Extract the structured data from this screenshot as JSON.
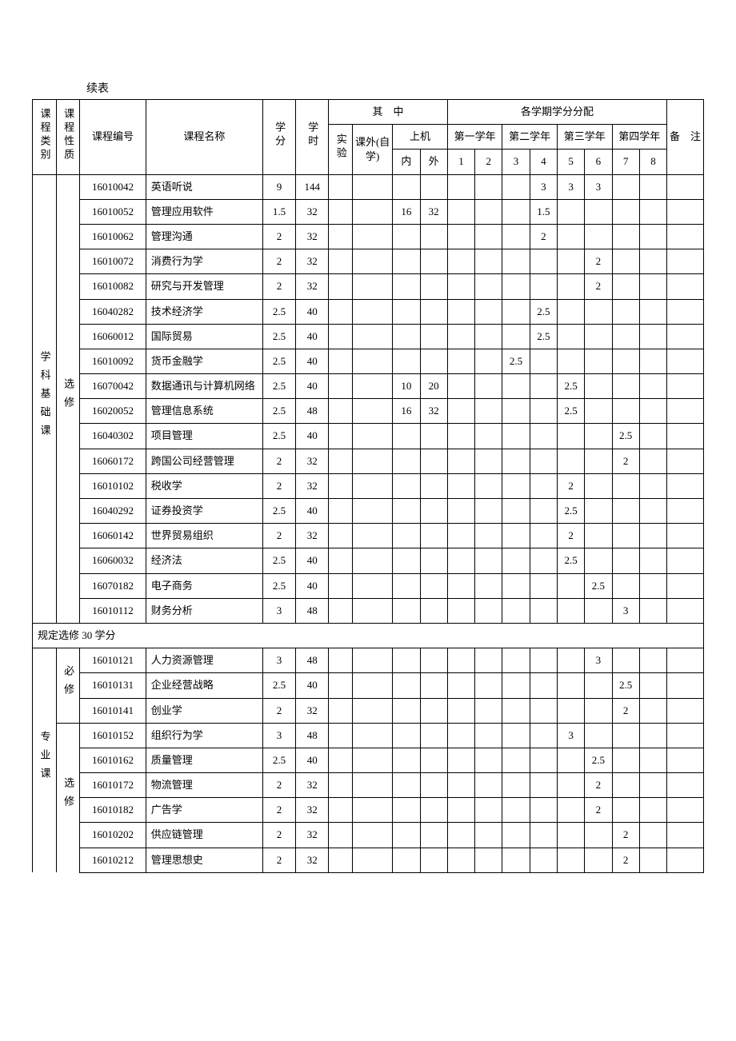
{
  "caption": "续表",
  "header": {
    "category": "课程类别",
    "nature": "课程性质",
    "code": "课程编号",
    "name": "课程名称",
    "credit": "学分",
    "hours": "学时",
    "of_which": "其　中",
    "experiment": "实验",
    "self_study": "课外(自学)",
    "machine": "上机",
    "machine_in": "内",
    "machine_out": "外",
    "dist": "各学期学分分配",
    "year1": "第一学年",
    "year2": "第二学年",
    "year3": "第三学年",
    "year4": "第四学年",
    "s1": "1",
    "s2": "2",
    "s3": "3",
    "s4": "4",
    "s5": "5",
    "s6": "6",
    "s7": "7",
    "s8": "8",
    "remark": "备　注"
  },
  "catA": "学科基础课",
  "natA": "选修",
  "catB": "专业课",
  "natB1": "必修",
  "natB2": "选修",
  "note_row": "规定选修 30 学分",
  "rowsA": [
    {
      "code": "16010042",
      "name": "英语听说",
      "credit": "9",
      "hours": "144",
      "exp": "",
      "self": "",
      "in": "",
      "out": "",
      "s": [
        "",
        "",
        "",
        "3",
        "3",
        "3",
        "",
        ""
      ]
    },
    {
      "code": "16010052",
      "name": "管理应用软件",
      "credit": "1.5",
      "hours": "32",
      "exp": "",
      "self": "",
      "in": "16",
      "out": "32",
      "s": [
        "",
        "",
        "",
        "1.5",
        "",
        "",
        "",
        ""
      ]
    },
    {
      "code": "16010062",
      "name": "管理沟通",
      "credit": "2",
      "hours": "32",
      "exp": "",
      "self": "",
      "in": "",
      "out": "",
      "s": [
        "",
        "",
        "",
        "2",
        "",
        "",
        "",
        ""
      ]
    },
    {
      "code": "16010072",
      "name": "消费行为学",
      "credit": "2",
      "hours": "32",
      "exp": "",
      "self": "",
      "in": "",
      "out": "",
      "s": [
        "",
        "",
        "",
        "",
        "",
        "2",
        "",
        ""
      ]
    },
    {
      "code": "16010082",
      "name": "研究与开发管理",
      "credit": "2",
      "hours": "32",
      "exp": "",
      "self": "",
      "in": "",
      "out": "",
      "s": [
        "",
        "",
        "",
        "",
        "",
        "2",
        "",
        ""
      ]
    },
    {
      "code": "16040282",
      "name": "技术经济学",
      "credit": "2.5",
      "hours": "40",
      "exp": "",
      "self": "",
      "in": "",
      "out": "",
      "s": [
        "",
        "",
        "",
        "2.5",
        "",
        "",
        "",
        ""
      ]
    },
    {
      "code": "16060012",
      "name": "国际贸易",
      "credit": "2.5",
      "hours": "40",
      "exp": "",
      "self": "",
      "in": "",
      "out": "",
      "s": [
        "",
        "",
        "",
        "2.5",
        "",
        "",
        "",
        ""
      ]
    },
    {
      "code": "16010092",
      "name": "货币金融学",
      "credit": "2.5",
      "hours": "40",
      "exp": "",
      "self": "",
      "in": "",
      "out": "",
      "s": [
        "",
        "",
        "2.5",
        "",
        "",
        "",
        "",
        ""
      ]
    },
    {
      "code": "16070042",
      "name": "数据通讯与计算机网络",
      "credit": "2.5",
      "hours": "40",
      "exp": "",
      "self": "",
      "in": "10",
      "out": "20",
      "s": [
        "",
        "",
        "",
        "",
        "2.5",
        "",
        "",
        ""
      ]
    },
    {
      "code": "16020052",
      "name": "管理信息系统",
      "credit": "2.5",
      "hours": "48",
      "exp": "",
      "self": "",
      "in": "16",
      "out": "32",
      "s": [
        "",
        "",
        "",
        "",
        "2.5",
        "",
        "",
        ""
      ]
    },
    {
      "code": "16040302",
      "name": "项目管理",
      "credit": "2.5",
      "hours": "40",
      "exp": "",
      "self": "",
      "in": "",
      "out": "",
      "s": [
        "",
        "",
        "",
        "",
        "",
        "",
        "2.5",
        ""
      ]
    },
    {
      "code": "16060172",
      "name": "跨国公司经营管理",
      "credit": "2",
      "hours": "32",
      "exp": "",
      "self": "",
      "in": "",
      "out": "",
      "s": [
        "",
        "",
        "",
        "",
        "",
        "",
        "2",
        ""
      ]
    },
    {
      "code": "16010102",
      "name": "税收学",
      "credit": "2",
      "hours": "32",
      "exp": "",
      "self": "",
      "in": "",
      "out": "",
      "s": [
        "",
        "",
        "",
        "",
        "2",
        "",
        "",
        ""
      ]
    },
    {
      "code": "16040292",
      "name": "证券投资学",
      "credit": "2.5",
      "hours": "40",
      "exp": "",
      "self": "",
      "in": "",
      "out": "",
      "s": [
        "",
        "",
        "",
        "",
        "2.5",
        "",
        "",
        ""
      ]
    },
    {
      "code": "16060142",
      "name": "世界贸易组织",
      "credit": "2",
      "hours": "32",
      "exp": "",
      "self": "",
      "in": "",
      "out": "",
      "s": [
        "",
        "",
        "",
        "",
        "2",
        "",
        "",
        ""
      ]
    },
    {
      "code": "16060032",
      "name": "经济法",
      "credit": "2.5",
      "hours": "40",
      "exp": "",
      "self": "",
      "in": "",
      "out": "",
      "s": [
        "",
        "",
        "",
        "",
        "2.5",
        "",
        "",
        ""
      ]
    },
    {
      "code": "16070182",
      "name": "电子商务",
      "credit": "2.5",
      "hours": "40",
      "exp": "",
      "self": "",
      "in": "",
      "out": "",
      "s": [
        "",
        "",
        "",
        "",
        "",
        "2.5",
        "",
        ""
      ]
    },
    {
      "code": "16010112",
      "name": "财务分析",
      "credit": "3",
      "hours": "48",
      "exp": "",
      "self": "",
      "in": "",
      "out": "",
      "s": [
        "",
        "",
        "",
        "",
        "",
        "",
        "3",
        ""
      ]
    }
  ],
  "rowsB1": [
    {
      "code": "16010121",
      "name": "人力资源管理",
      "credit": "3",
      "hours": "48",
      "exp": "",
      "self": "",
      "in": "",
      "out": "",
      "s": [
        "",
        "",
        "",
        "",
        "",
        "3",
        "",
        ""
      ]
    },
    {
      "code": "16010131",
      "name": "企业经营战略",
      "credit": "2.5",
      "hours": "40",
      "exp": "",
      "self": "",
      "in": "",
      "out": "",
      "s": [
        "",
        "",
        "",
        "",
        "",
        "",
        "2.5",
        ""
      ]
    },
    {
      "code": "16010141",
      "name": "创业学",
      "credit": "2",
      "hours": "32",
      "exp": "",
      "self": "",
      "in": "",
      "out": "",
      "s": [
        "",
        "",
        "",
        "",
        "",
        "",
        "2",
        ""
      ]
    }
  ],
  "rowsB2": [
    {
      "code": "16010152",
      "name": "组织行为学",
      "credit": "3",
      "hours": "48",
      "exp": "",
      "self": "",
      "in": "",
      "out": "",
      "s": [
        "",
        "",
        "",
        "",
        "3",
        "",
        "",
        ""
      ]
    },
    {
      "code": "16010162",
      "name": "质量管理",
      "credit": "2.5",
      "hours": "40",
      "exp": "",
      "self": "",
      "in": "",
      "out": "",
      "s": [
        "",
        "",
        "",
        "",
        "",
        "2.5",
        "",
        ""
      ]
    },
    {
      "code": "16010172",
      "name": "物流管理",
      "credit": "2",
      "hours": "32",
      "exp": "",
      "self": "",
      "in": "",
      "out": "",
      "s": [
        "",
        "",
        "",
        "",
        "",
        "2",
        "",
        ""
      ]
    },
    {
      "code": "16010182",
      "name": "广告学",
      "credit": "2",
      "hours": "32",
      "exp": "",
      "self": "",
      "in": "",
      "out": "",
      "s": [
        "",
        "",
        "",
        "",
        "",
        "2",
        "",
        ""
      ]
    },
    {
      "code": "16010202",
      "name": "供应链管理",
      "credit": "2",
      "hours": "32",
      "exp": "",
      "self": "",
      "in": "",
      "out": "",
      "s": [
        "",
        "",
        "",
        "",
        "",
        "",
        "2",
        ""
      ]
    },
    {
      "code": "16010212",
      "name": "管理思想史",
      "credit": "2",
      "hours": "32",
      "exp": "",
      "self": "",
      "in": "",
      "out": "",
      "s": [
        "",
        "",
        "",
        "",
        "",
        "",
        "2",
        ""
      ]
    }
  ]
}
